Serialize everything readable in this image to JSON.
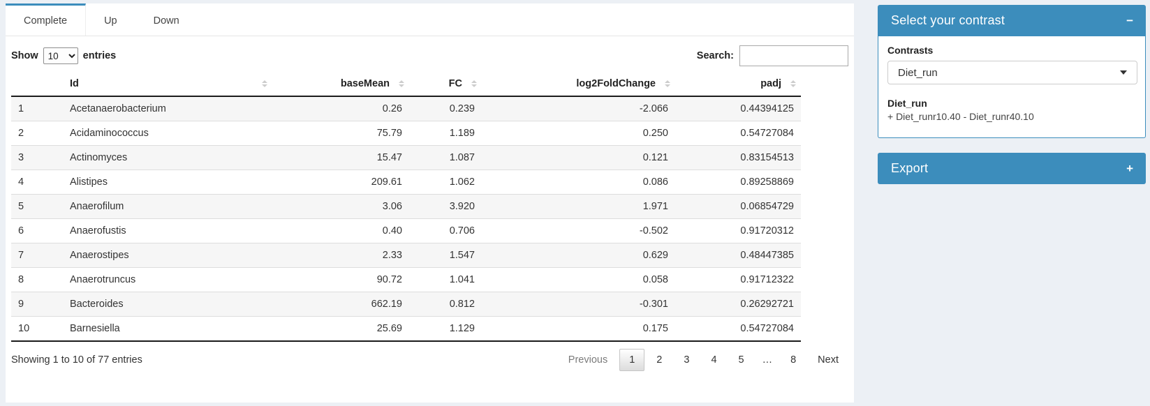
{
  "tabs": [
    {
      "label": "Complete",
      "active": true
    },
    {
      "label": "Up",
      "active": false
    },
    {
      "label": "Down",
      "active": false
    }
  ],
  "controls": {
    "show_label": "Show",
    "page_length": "10",
    "entries_label": "entries",
    "search_label": "Search:",
    "search_value": ""
  },
  "table": {
    "columns": [
      {
        "label": ""
      },
      {
        "label": "Id"
      },
      {
        "label": "baseMean"
      },
      {
        "label": "FC"
      },
      {
        "label": "log2FoldChange"
      },
      {
        "label": "padj"
      }
    ],
    "rows": [
      {
        "num": "1",
        "id": "Acetanaerobacterium",
        "baseMean": "0.26",
        "fc": "0.239",
        "log2fc": "-2.066",
        "padj": "0.44394125"
      },
      {
        "num": "2",
        "id": "Acidaminococcus",
        "baseMean": "75.79",
        "fc": "1.189",
        "log2fc": "0.250",
        "padj": "0.54727084"
      },
      {
        "num": "3",
        "id": "Actinomyces",
        "baseMean": "15.47",
        "fc": "1.087",
        "log2fc": "0.121",
        "padj": "0.83154513"
      },
      {
        "num": "4",
        "id": "Alistipes",
        "baseMean": "209.61",
        "fc": "1.062",
        "log2fc": "0.086",
        "padj": "0.89258869"
      },
      {
        "num": "5",
        "id": "Anaerofilum",
        "baseMean": "3.06",
        "fc": "3.920",
        "log2fc": "1.971",
        "padj": "0.06854729"
      },
      {
        "num": "6",
        "id": "Anaerofustis",
        "baseMean": "0.40",
        "fc": "0.706",
        "log2fc": "-0.502",
        "padj": "0.91720312"
      },
      {
        "num": "7",
        "id": "Anaerostipes",
        "baseMean": "2.33",
        "fc": "1.547",
        "log2fc": "0.629",
        "padj": "0.48447385"
      },
      {
        "num": "8",
        "id": "Anaerotruncus",
        "baseMean": "90.72",
        "fc": "1.041",
        "log2fc": "0.058",
        "padj": "0.91712322"
      },
      {
        "num": "9",
        "id": "Bacteroides",
        "baseMean": "662.19",
        "fc": "0.812",
        "log2fc": "-0.301",
        "padj": "0.26292721"
      },
      {
        "num": "10",
        "id": "Barnesiella",
        "baseMean": "25.69",
        "fc": "1.129",
        "log2fc": "0.175",
        "padj": "0.54727084"
      }
    ]
  },
  "footer": {
    "info": "Showing 1 to 10 of 77 entries",
    "previous_label": "Previous",
    "pages": [
      "1",
      "2",
      "3",
      "4",
      "5",
      "…",
      "8"
    ],
    "active_page": "1",
    "next_label": "Next"
  },
  "contrast_panel": {
    "title": "Select your contrast",
    "collapse_icon": "−",
    "contrasts_label": "Contrasts",
    "selected_contrast": "Diet_run",
    "contrast_name": "Diet_run",
    "contrast_formula": "+ Diet_runr10.40 - Diet_runr40.10"
  },
  "export_panel": {
    "title": "Export",
    "expand_icon": "+"
  },
  "colors": {
    "primary": "#3c8dbc",
    "page_bg": "#ecf0f5"
  }
}
